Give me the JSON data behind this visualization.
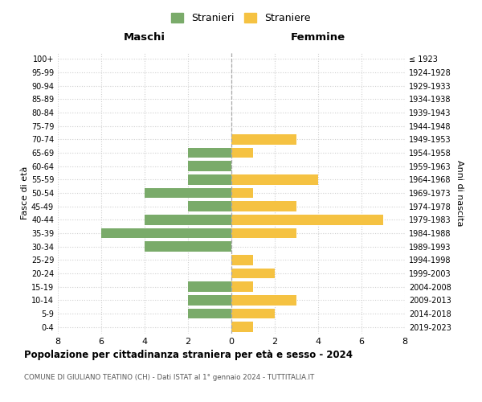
{
  "age_groups": [
    "0-4",
    "5-9",
    "10-14",
    "15-19",
    "20-24",
    "25-29",
    "30-34",
    "35-39",
    "40-44",
    "45-49",
    "50-54",
    "55-59",
    "60-64",
    "65-69",
    "70-74",
    "75-79",
    "80-84",
    "85-89",
    "90-94",
    "95-99",
    "100+"
  ],
  "birth_years": [
    "2019-2023",
    "2014-2018",
    "2009-2013",
    "2004-2008",
    "1999-2003",
    "1994-1998",
    "1989-1993",
    "1984-1988",
    "1979-1983",
    "1974-1978",
    "1969-1973",
    "1964-1968",
    "1959-1963",
    "1954-1958",
    "1949-1953",
    "1944-1948",
    "1939-1943",
    "1934-1938",
    "1929-1933",
    "1924-1928",
    "≤ 1923"
  ],
  "maschi": [
    0,
    2,
    2,
    2,
    0,
    0,
    4,
    6,
    4,
    2,
    4,
    2,
    2,
    2,
    0,
    0,
    0,
    0,
    0,
    0,
    0
  ],
  "femmine": [
    1,
    2,
    3,
    1,
    2,
    1,
    0,
    3,
    7,
    3,
    1,
    4,
    0,
    1,
    3,
    0,
    0,
    0,
    0,
    0,
    0
  ],
  "color_maschi": "#7aab6a",
  "color_femmine": "#f5c242",
  "xlabel_left": "Maschi",
  "xlabel_right": "Femmine",
  "ylabel_left": "Fasce di età",
  "ylabel_right": "Anni di nascita",
  "title": "Popolazione per cittadinanza straniera per età e sesso - 2024",
  "subtitle": "COMUNE DI GIULIANO TEATINO (CH) - Dati ISTAT al 1° gennaio 2024 - TUTTITALIA.IT",
  "legend_maschi": "Stranieri",
  "legend_femmine": "Straniere",
  "xlim": 8,
  "background_color": "#ffffff",
  "grid_color": "#d0d0d0"
}
